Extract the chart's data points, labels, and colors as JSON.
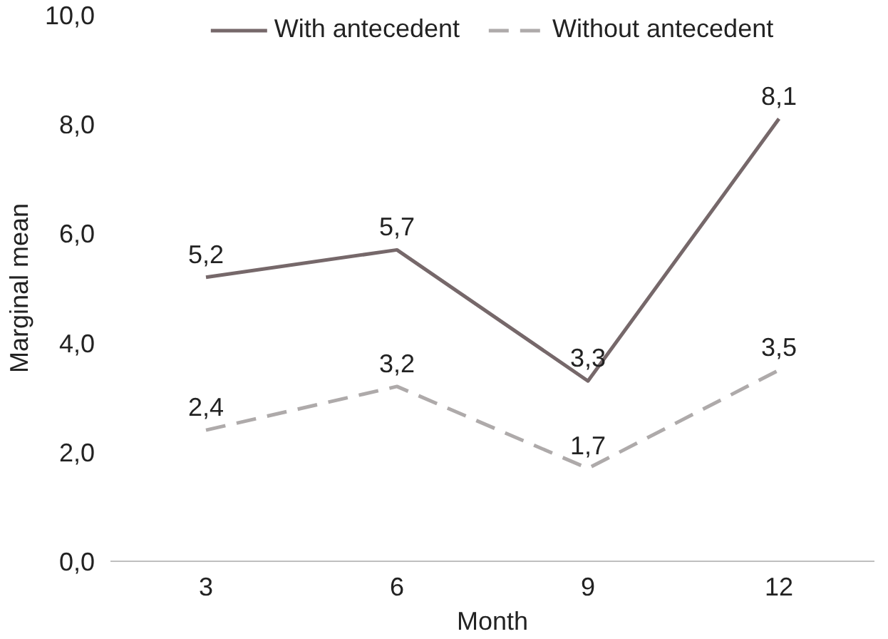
{
  "chart_data": {
    "type": "line",
    "xlabel": "Month",
    "ylabel": "Marginal mean",
    "categories": [
      "3",
      "6",
      "9",
      "12"
    ],
    "series": [
      {
        "name": "With antecedent",
        "color": "#76686a",
        "line_style": "solid",
        "values": [
          5.2,
          5.7,
          3.3,
          8.1
        ],
        "value_labels": [
          "5,2",
          "5,7",
          "3,3",
          "8,1"
        ]
      },
      {
        "name": "Without antecedent",
        "color": "#aeaaaa",
        "line_style": "dashed",
        "values": [
          2.4,
          3.2,
          1.7,
          3.5
        ],
        "value_labels": [
          "2,4",
          "3,2",
          "1,7",
          "3,5"
        ]
      }
    ],
    "ylim": [
      0,
      10
    ],
    "yticks": [
      {
        "value": 0,
        "label": "0,0"
      },
      {
        "value": 2,
        "label": "2,0"
      },
      {
        "value": 4,
        "label": "4,0"
      },
      {
        "value": 6,
        "label": "6,0"
      },
      {
        "value": 8,
        "label": "8,0"
      },
      {
        "value": 10,
        "label": "10,0"
      }
    ],
    "grid": false,
    "legend": "top"
  }
}
